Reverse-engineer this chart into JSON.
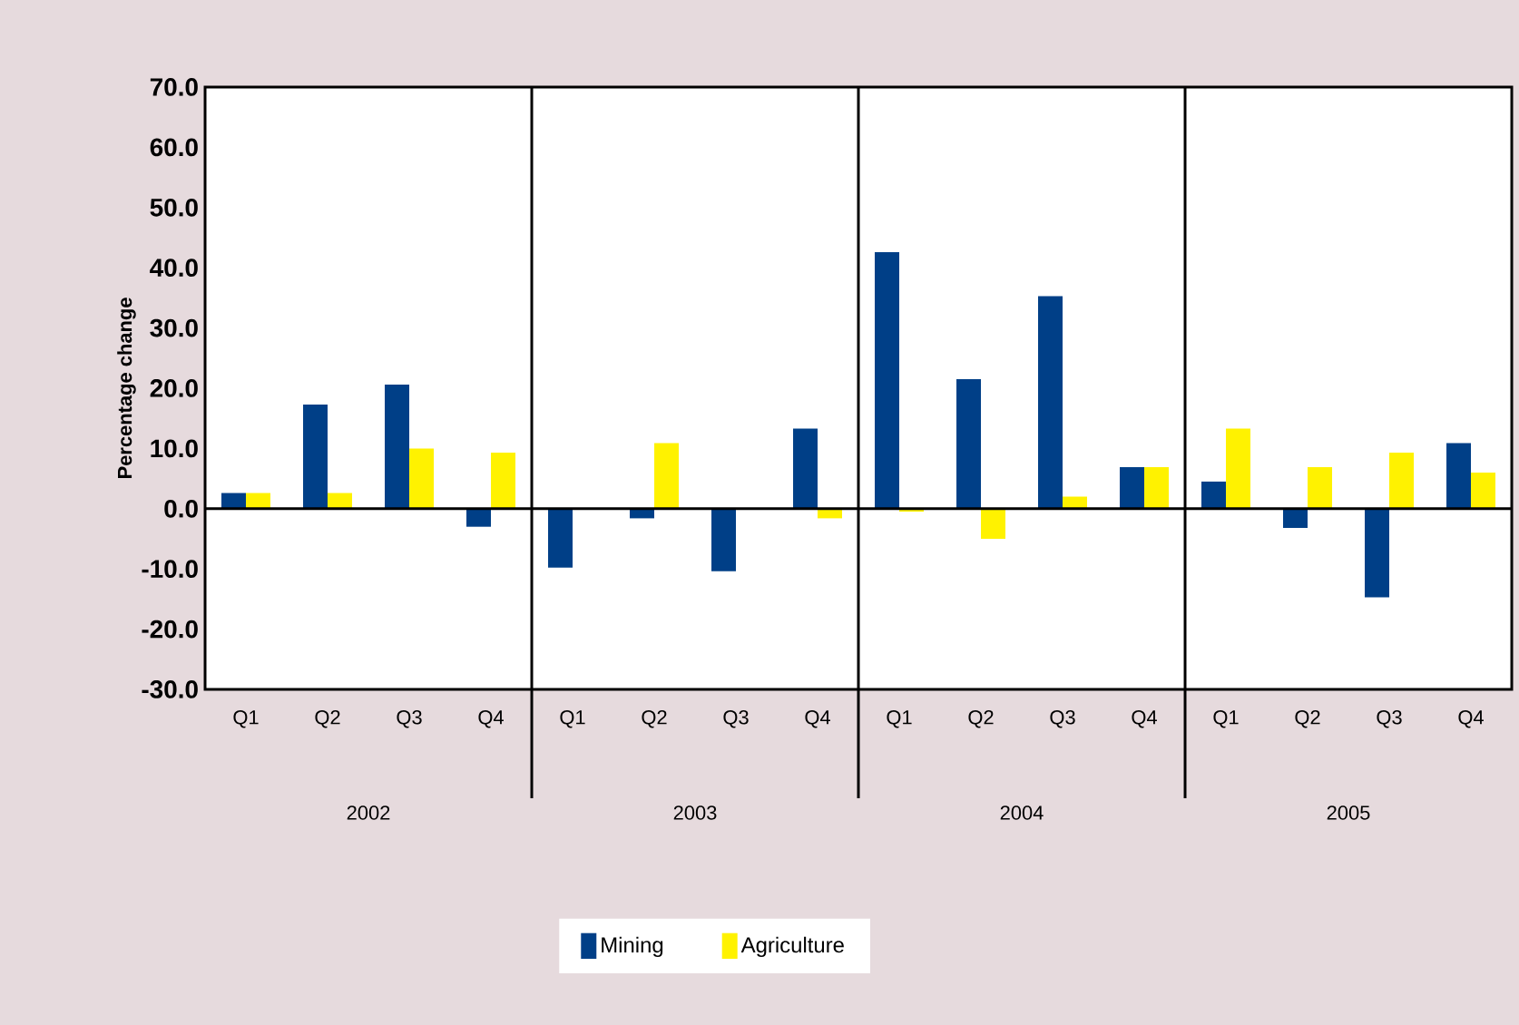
{
  "chart_data": {
    "type": "bar",
    "ylabel": "Percentage change",
    "categories": [
      "Q1",
      "Q2",
      "Q3",
      "Q4",
      "Q1",
      "Q2",
      "Q3",
      "Q4",
      "Q1",
      "Q2",
      "Q3",
      "Q4",
      "Q1",
      "Q2",
      "Q3",
      "Q4"
    ],
    "series": [
      {
        "name": "Mining",
        "color": "#003f87",
        "values": [
          2.6,
          17.3,
          20.6,
          -3.0,
          -9.8,
          -1.6,
          -10.4,
          13.3,
          42.6,
          21.5,
          35.3,
          6.9,
          4.5,
          -3.2,
          -14.7,
          10.9
        ]
      },
      {
        "name": "Agriculture",
        "color": "#fff200",
        "values": [
          2.6,
          2.6,
          10.0,
          9.3,
          0,
          10.9,
          0,
          -1.6,
          -0.5,
          -5.0,
          2.0,
          6.9,
          13.3,
          6.9,
          9.3,
          6.0
        ]
      }
    ],
    "ylim": [
      -30,
      70
    ],
    "yticks": [
      {
        "value": -30,
        "label": "-30.0"
      },
      {
        "value": -20,
        "label": "-20.0"
      },
      {
        "value": -10,
        "label": "-10.0"
      },
      {
        "value": 0,
        "label": "0.0"
      },
      {
        "value": 10,
        "label": "10.0"
      },
      {
        "value": 20,
        "label": "20.0"
      },
      {
        "value": 30,
        "label": "30.0"
      },
      {
        "value": 40,
        "label": "40.0"
      },
      {
        "value": 50,
        "label": "50.0"
      },
      {
        "value": 60,
        "label": "60.0"
      },
      {
        "value": 70,
        "label": "70.0"
      }
    ],
    "annotations": [
      "2002",
      "2003",
      "2004",
      "2005"
    ],
    "legend": "bottom"
  }
}
